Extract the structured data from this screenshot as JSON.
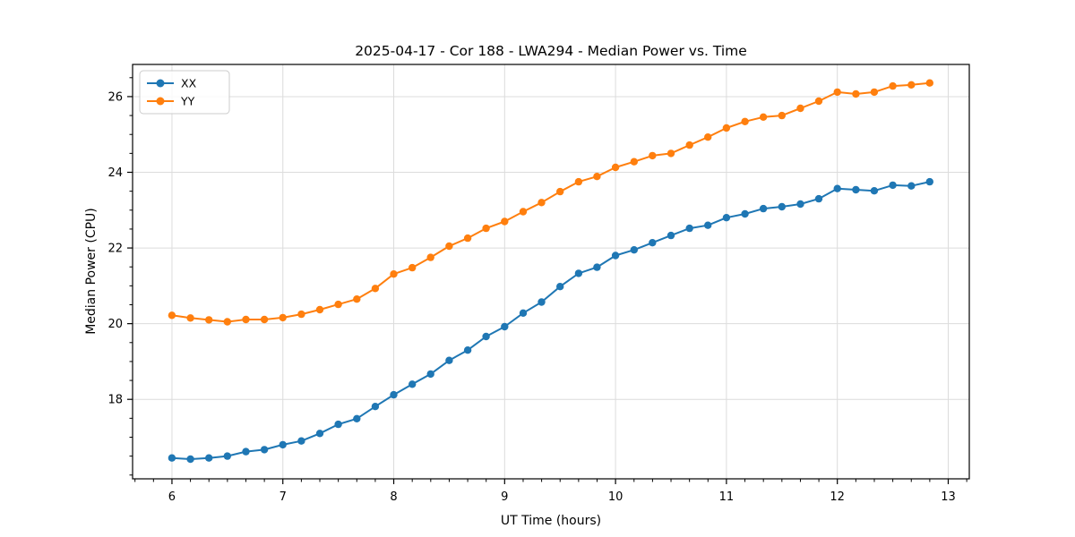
{
  "window": {
    "background": "#ffffff"
  },
  "chart_data": {
    "type": "line",
    "title": "2025-04-17 - Cor 188 - LWA294 - Median Power vs. Time",
    "xlabel": "UT Time (hours)",
    "ylabel": "Median Power (CPU)",
    "xlim": [
      5.645,
      13.19
    ],
    "ylim": [
      15.9,
      26.85
    ],
    "x_ticks": [
      6,
      7,
      8,
      9,
      10,
      11,
      12,
      13
    ],
    "y_ticks": [
      18,
      20,
      22,
      24,
      26
    ],
    "x_minor_step": 0.16667,
    "y_minor_step": 0.5,
    "grid": true,
    "grid_color": "#dcdcdc",
    "spine_color": "#000000",
    "legend_position": "upper left",
    "marker": "circle",
    "x": [
      6,
      6.167,
      6.333,
      6.5,
      6.667,
      6.833,
      7,
      7.167,
      7.333,
      7.5,
      7.667,
      7.833,
      8,
      8.167,
      8.333,
      8.5,
      8.667,
      8.833,
      9,
      9.167,
      9.333,
      9.5,
      9.667,
      9.833,
      10,
      10.167,
      10.333,
      10.5,
      10.667,
      10.833,
      11,
      11.167,
      11.333,
      11.5,
      11.667,
      11.833,
      12,
      12.167,
      12.333,
      12.5,
      12.667,
      12.833
    ],
    "series": [
      {
        "name": "XX",
        "color": "#1f77b4",
        "values": [
          16.45,
          16.42,
          16.45,
          16.5,
          16.62,
          16.67,
          16.8,
          16.9,
          17.1,
          17.34,
          17.49,
          17.81,
          18.12,
          18.4,
          18.67,
          19.03,
          19.3,
          19.66,
          19.92,
          20.28,
          20.57,
          20.98,
          21.33,
          21.49,
          21.8,
          21.95,
          22.14,
          22.33,
          22.52,
          22.6,
          22.8,
          22.9,
          23.04,
          23.09,
          23.16,
          23.3,
          23.57,
          23.54,
          23.51,
          23.66,
          23.64,
          23.75
        ]
      },
      {
        "name": "YY",
        "color": "#ff7f0e",
        "values": [
          20.22,
          20.15,
          20.1,
          20.05,
          20.11,
          20.11,
          20.16,
          20.25,
          20.37,
          20.51,
          20.65,
          20.93,
          21.31,
          21.48,
          21.75,
          22.05,
          22.26,
          22.52,
          22.7,
          22.96,
          23.2,
          23.49,
          23.75,
          23.89,
          24.13,
          24.28,
          24.44,
          24.5,
          24.72,
          24.93,
          25.17,
          25.34,
          25.46,
          25.5,
          25.69,
          25.88,
          26.12,
          26.07,
          26.12,
          26.28,
          26.31,
          26.36
        ]
      }
    ]
  }
}
